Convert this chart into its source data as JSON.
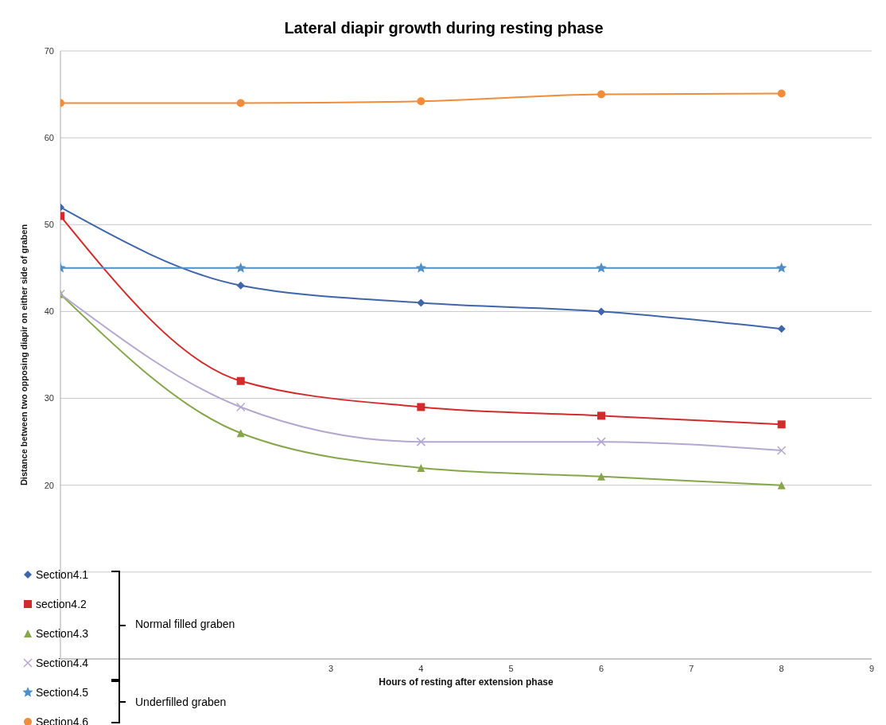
{
  "chart_data": {
    "type": "line",
    "title": "Lateral diapir growth during resting phase",
    "xlabel": "Hours of resting after extension phase",
    "ylabel": "Distance between two opposing  diapir on either side of graben",
    "x": [
      0,
      2,
      4,
      6,
      8
    ],
    "series": [
      {
        "name": "Section4.1",
        "color": "#3f66a8",
        "marker": "diamond",
        "values": [
          52,
          43,
          41,
          40,
          38
        ]
      },
      {
        "name": "section4.2",
        "color": "#d22b2b",
        "marker": "square",
        "values": [
          51,
          32,
          29,
          28,
          27
        ]
      },
      {
        "name": "Section4.3",
        "color": "#86a64a",
        "marker": "triangle",
        "values": [
          42,
          26,
          22,
          21,
          20
        ]
      },
      {
        "name": "Section4.4",
        "color": "#b3a8d0",
        "marker": "cross",
        "values": [
          42,
          29,
          25,
          25,
          24
        ]
      },
      {
        "name": "Section4.5",
        "color": "#4f8fc8",
        "marker": "star",
        "values": [
          45,
          45,
          45,
          45,
          45
        ]
      },
      {
        "name": "Section4.6",
        "color": "#f08c3a",
        "marker": "circle",
        "values": [
          64,
          64,
          64.2,
          65,
          65.1
        ]
      }
    ],
    "xlim": [
      0,
      9
    ],
    "xticks": [
      3,
      4,
      5,
      6,
      7,
      8,
      9
    ],
    "ylim": [
      0,
      70
    ],
    "yticks": [
      {
        "value": 0,
        "label": null
      },
      {
        "value": 10,
        "label": null
      },
      20,
      30,
      40,
      50,
      60,
      70
    ],
    "grid": "y",
    "legend": "bottom left",
    "annotations": [
      "Normal filled graben",
      "Underfilled graben"
    ]
  }
}
